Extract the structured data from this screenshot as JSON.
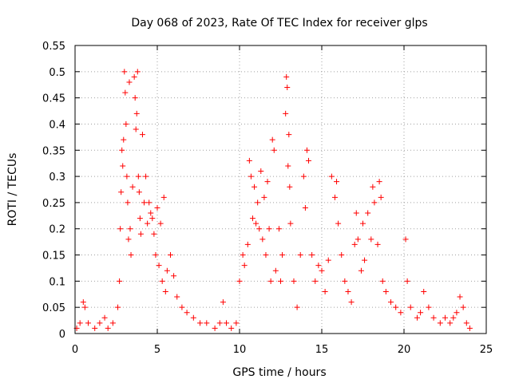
{
  "chart_data": {
    "type": "scatter",
    "title": "Day 068 of 2023, Rate Of TEC Index for receiver glps",
    "xlabel": "GPS time / hours",
    "ylabel": "ROTI / TECUs",
    "xlim": [
      0,
      25
    ],
    "ylim": [
      0,
      0.55
    ],
    "xticks": [
      0,
      5,
      10,
      15,
      20,
      25
    ],
    "yticks": [
      0,
      0.05,
      0.1,
      0.15,
      0.2,
      0.25,
      0.3,
      0.35,
      0.4,
      0.45,
      0.5,
      0.55
    ],
    "xtick_labels": [
      "0",
      "5",
      "10",
      "15",
      "20",
      "25"
    ],
    "ytick_labels": [
      "0",
      "0.05",
      "0.1",
      "0.15",
      "0.2",
      "0.25",
      "0.3",
      "0.35",
      "0.4",
      "0.45",
      "0.5",
      "0.55"
    ],
    "grid": true,
    "marker": "+",
    "color": "#ff0000",
    "series": [
      {
        "points": [
          [
            0.1,
            0.01
          ],
          [
            0.3,
            0.02
          ],
          [
            0.5,
            0.06
          ],
          [
            0.6,
            0.05
          ],
          [
            0.8,
            0.02
          ],
          [
            1.2,
            0.01
          ],
          [
            1.5,
            0.02
          ],
          [
            1.8,
            0.03
          ],
          [
            2.0,
            0.01
          ],
          [
            2.3,
            0.02
          ],
          [
            2.6,
            0.05
          ],
          [
            2.7,
            0.1
          ],
          [
            2.75,
            0.2
          ],
          [
            2.8,
            0.27
          ],
          [
            2.85,
            0.35
          ],
          [
            2.9,
            0.32
          ],
          [
            2.95,
            0.37
          ],
          [
            3.0,
            0.5
          ],
          [
            3.05,
            0.46
          ],
          [
            3.1,
            0.4
          ],
          [
            3.15,
            0.3
          ],
          [
            3.2,
            0.25
          ],
          [
            3.25,
            0.18
          ],
          [
            3.3,
            0.48
          ],
          [
            3.35,
            0.2
          ],
          [
            3.4,
            0.15
          ],
          [
            3.5,
            0.28
          ],
          [
            3.6,
            0.49
          ],
          [
            3.65,
            0.45
          ],
          [
            3.7,
            0.39
          ],
          [
            3.75,
            0.42
          ],
          [
            3.8,
            0.5
          ],
          [
            3.85,
            0.3
          ],
          [
            3.9,
            0.27
          ],
          [
            3.95,
            0.22
          ],
          [
            4.0,
            0.19
          ],
          [
            4.1,
            0.38
          ],
          [
            4.2,
            0.25
          ],
          [
            4.3,
            0.3
          ],
          [
            4.4,
            0.21
          ],
          [
            4.5,
            0.25
          ],
          [
            4.6,
            0.23
          ],
          [
            4.7,
            0.22
          ],
          [
            4.8,
            0.19
          ],
          [
            4.9,
            0.15
          ],
          [
            5.0,
            0.24
          ],
          [
            5.1,
            0.13
          ],
          [
            5.2,
            0.21
          ],
          [
            5.3,
            0.1
          ],
          [
            5.4,
            0.26
          ],
          [
            5.5,
            0.08
          ],
          [
            5.6,
            0.12
          ],
          [
            5.8,
            0.15
          ],
          [
            6.0,
            0.11
          ],
          [
            6.2,
            0.07
          ],
          [
            6.5,
            0.05
          ],
          [
            6.8,
            0.04
          ],
          [
            7.2,
            0.03
          ],
          [
            7.6,
            0.02
          ],
          [
            8.0,
            0.02
          ],
          [
            8.5,
            0.01
          ],
          [
            8.8,
            0.02
          ],
          [
            9.0,
            0.06
          ],
          [
            9.2,
            0.02
          ],
          [
            9.5,
            0.01
          ],
          [
            9.8,
            0.02
          ],
          [
            10.0,
            0.1
          ],
          [
            10.2,
            0.15
          ],
          [
            10.3,
            0.13
          ],
          [
            10.5,
            0.17
          ],
          [
            10.6,
            0.33
          ],
          [
            10.7,
            0.3
          ],
          [
            10.8,
            0.22
          ],
          [
            10.9,
            0.28
          ],
          [
            11.0,
            0.21
          ],
          [
            11.1,
            0.25
          ],
          [
            11.2,
            0.2
          ],
          [
            11.3,
            0.31
          ],
          [
            11.4,
            0.18
          ],
          [
            11.5,
            0.26
          ],
          [
            11.6,
            0.15
          ],
          [
            11.7,
            0.29
          ],
          [
            11.8,
            0.2
          ],
          [
            11.9,
            0.1
          ],
          [
            12.0,
            0.37
          ],
          [
            12.1,
            0.35
          ],
          [
            12.2,
            0.12
          ],
          [
            12.4,
            0.2
          ],
          [
            12.5,
            0.1
          ],
          [
            12.6,
            0.15
          ],
          [
            12.8,
            0.42
          ],
          [
            12.85,
            0.49
          ],
          [
            12.9,
            0.47
          ],
          [
            12.95,
            0.32
          ],
          [
            13.0,
            0.38
          ],
          [
            13.05,
            0.28
          ],
          [
            13.1,
            0.21
          ],
          [
            13.3,
            0.1
          ],
          [
            13.5,
            0.05
          ],
          [
            13.7,
            0.15
          ],
          [
            13.9,
            0.3
          ],
          [
            14.0,
            0.24
          ],
          [
            14.1,
            0.35
          ],
          [
            14.2,
            0.33
          ],
          [
            14.4,
            0.15
          ],
          [
            14.6,
            0.1
          ],
          [
            14.8,
            0.13
          ],
          [
            15.0,
            0.12
          ],
          [
            15.2,
            0.08
          ],
          [
            15.4,
            0.14
          ],
          [
            15.6,
            0.3
          ],
          [
            15.8,
            0.26
          ],
          [
            15.9,
            0.29
          ],
          [
            16.0,
            0.21
          ],
          [
            16.2,
            0.15
          ],
          [
            16.4,
            0.1
          ],
          [
            16.6,
            0.08
          ],
          [
            16.8,
            0.06
          ],
          [
            17.0,
            0.17
          ],
          [
            17.1,
            0.23
          ],
          [
            17.2,
            0.18
          ],
          [
            17.4,
            0.12
          ],
          [
            17.5,
            0.21
          ],
          [
            17.6,
            0.14
          ],
          [
            17.8,
            0.23
          ],
          [
            18.0,
            0.18
          ],
          [
            18.1,
            0.28
          ],
          [
            18.2,
            0.25
          ],
          [
            18.4,
            0.17
          ],
          [
            18.5,
            0.29
          ],
          [
            18.6,
            0.26
          ],
          [
            18.7,
            0.1
          ],
          [
            18.9,
            0.08
          ],
          [
            19.2,
            0.06
          ],
          [
            19.5,
            0.05
          ],
          [
            19.8,
            0.04
          ],
          [
            20.1,
            0.18
          ],
          [
            20.2,
            0.1
          ],
          [
            20.4,
            0.05
          ],
          [
            20.8,
            0.03
          ],
          [
            21.0,
            0.04
          ],
          [
            21.2,
            0.08
          ],
          [
            21.5,
            0.05
          ],
          [
            21.8,
            0.03
          ],
          [
            22.2,
            0.02
          ],
          [
            22.5,
            0.03
          ],
          [
            22.8,
            0.02
          ],
          [
            23.0,
            0.03
          ],
          [
            23.2,
            0.04
          ],
          [
            23.4,
            0.07
          ],
          [
            23.6,
            0.05
          ],
          [
            23.8,
            0.02
          ],
          [
            24.0,
            0.01
          ]
        ]
      }
    ]
  }
}
